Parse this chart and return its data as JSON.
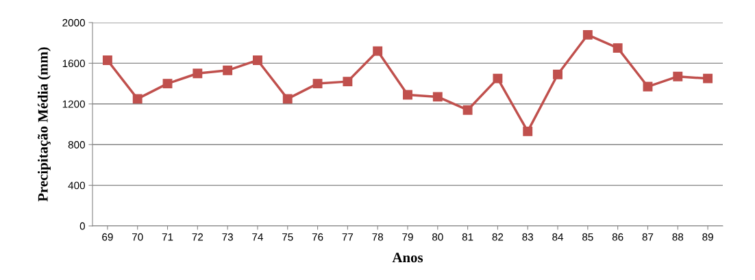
{
  "chart_data": {
    "type": "line",
    "xlabel": "Anos",
    "ylabel": "Precipitação Média (mm)",
    "categories": [
      "69",
      "70",
      "71",
      "72",
      "73",
      "74",
      "75",
      "76",
      "77",
      "78",
      "79",
      "80",
      "81",
      "82",
      "83",
      "84",
      "85",
      "86",
      "87",
      "88",
      "89"
    ],
    "series": [
      {
        "color": "#c0504d",
        "values": [
          1630,
          1250,
          1400,
          1500,
          1530,
          1630,
          1250,
          1400,
          1420,
          1720,
          1290,
          1270,
          1140,
          1450,
          930,
          1490,
          1880,
          1750,
          1370,
          1470,
          1450
        ]
      }
    ],
    "ylim": [
      0,
      2000
    ],
    "yticks": [
      0,
      400,
      800,
      1200,
      1600,
      2000
    ],
    "grid": "y",
    "marker": "square",
    "line_style": "solid",
    "legend": false
  }
}
